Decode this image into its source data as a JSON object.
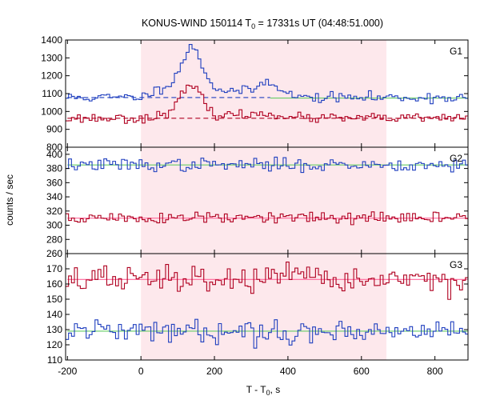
{
  "chart_data": {
    "type": "line",
    "title_main": "KONUS-WIND 150114 T",
    "title_sub": "0",
    "title_rest": " = 17331s UT (04:48:51.000)",
    "xlabel_main": "T - T",
    "xlabel_sub": "0",
    "xlabel_rest": ", s",
    "ylabel": "counts / sec",
    "xlim": [
      -205,
      890
    ],
    "x_ticks": [
      -200,
      0,
      200,
      400,
      600,
      800
    ],
    "x_tick_labels": [
      "-200",
      "0",
      "200",
      "400",
      "600",
      "800"
    ],
    "highlight_interval": [
      0,
      668
    ],
    "colors": {
      "blue": "#1f3fbf",
      "red": "#b00020",
      "fit_light": "#66cc66",
      "pink_fit": "#ff6699",
      "shade": "#fde8ec"
    },
    "panels": [
      {
        "label": "G1",
        "ylim": [
          800,
          1400
        ],
        "y_ticks": [
          800,
          900,
          1000,
          1100,
          1200,
          1300,
          1400
        ],
        "y_tick_labels": [
          "800",
          "900",
          "1000",
          "1100",
          "1200",
          "1300",
          "1400"
        ],
        "series": [
          {
            "color": "blue",
            "baseline": 1078,
            "noise": 14,
            "seed": 11,
            "peaks": [
              {
                "center": 140,
                "width": 28,
                "height": 255
              },
              {
                "center": 75,
                "width": 35,
                "height": 60
              },
              {
                "center": 350,
                "width": 30,
                "height": 85
              },
              {
                "center": 230,
                "width": 60,
                "height": 40
              }
            ]
          },
          {
            "color": "red",
            "baseline": 962,
            "noise": 13,
            "seed": 23,
            "peaks": [
              {
                "center": 140,
                "width": 25,
                "height": 160
              },
              {
                "center": 95,
                "width": 30,
                "height": 45
              },
              {
                "center": 350,
                "width": 35,
                "height": 25
              },
              {
                "center": 230,
                "width": 60,
                "height": 20
              }
            ]
          }
        ],
        "fit_lines": [
          {
            "color": "blue",
            "style": "dashed",
            "from": -200,
            "to": 352,
            "value": 1078
          },
          {
            "color": "fit_light",
            "style": "solid",
            "from": 352,
            "to": 890,
            "value": 1075
          },
          {
            "color": "red",
            "style": "dashed",
            "from": -200,
            "to": 890,
            "value": 962
          }
        ]
      },
      {
        "label": "G2",
        "ylim": [
          260,
          410
        ],
        "y_ticks": [
          260,
          280,
          300,
          320,
          340,
          360,
          380,
          400
        ],
        "y_tick_labels": [
          "260",
          "280",
          "300",
          "320",
          "340",
          "360",
          "380",
          "400"
        ],
        "series": [
          {
            "color": "blue",
            "baseline": 385,
            "noise": 4.5,
            "seed": 37,
            "peaks": []
          },
          {
            "color": "red",
            "baseline": 310,
            "noise": 4.5,
            "seed": 51,
            "peaks": []
          }
        ],
        "fit_lines": [
          {
            "color": "fit_light",
            "style": "solid",
            "from": -200,
            "to": 890,
            "value": 385
          },
          {
            "color": "pink_fit",
            "style": "solid",
            "from": -200,
            "to": 890,
            "value": 310
          }
        ]
      },
      {
        "label": "G3",
        "ylim": [
          110,
          180
        ],
        "y_ticks": [
          110,
          120,
          130,
          140,
          150,
          160,
          170
        ],
        "y_tick_labels": [
          "110",
          "120",
          "130",
          "140",
          "150",
          "160",
          "170"
        ],
        "series": [
          {
            "color": "red",
            "baseline": 163,
            "noise": 4.5,
            "seed": 67,
            "peaks": []
          },
          {
            "color": "blue",
            "baseline": 129,
            "noise": 3.6,
            "seed": 79,
            "peaks": []
          }
        ],
        "fit_lines": [
          {
            "color": "pink_fit",
            "style": "solid",
            "from": -200,
            "to": 890,
            "value": 163
          },
          {
            "color": "fit_light",
            "style": "solid",
            "from": -200,
            "to": 890,
            "value": 129
          }
        ]
      }
    ]
  }
}
